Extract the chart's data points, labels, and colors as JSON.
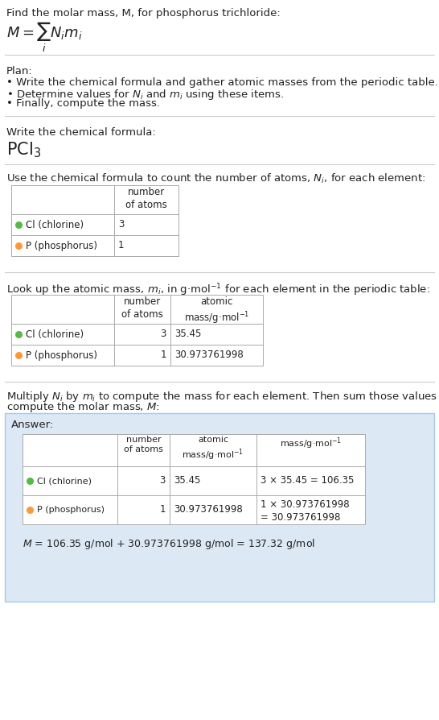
{
  "bg_color": "#ffffff",
  "answer_bg_color": "#dce9f5",
  "answer_border_color": "#a8c8e8",
  "table_border_color": "#aaaaaa",
  "cl_color": "#55bb44",
  "p_color": "#ff9933",
  "text_color": "#222222",
  "separator_color": "#cccccc",
  "title": "Find the molar mass, M, for phosphorus trichloride:",
  "plan_label": "Plan:",
  "plan_bullets": [
    "• Write the chemical formula and gather atomic masses from the periodic table.",
    "• Determine values for $N_i$ and $m_i$ using these items.",
    "• Finally, compute the mass."
  ],
  "section2_label": "Write the chemical formula:",
  "section3_label": "Use the chemical formula to count the number of atoms, $N_i$, for each element:",
  "section4_label": "Look up the atomic mass, $m_i$, in g·mol$^{-1}$ for each element in the periodic table:",
  "section5_label1": "Multiply $N_i$ by $m_i$ to compute the mass for each element. Then sum those values to",
  "section5_label2": "compute the molar mass, $M$:",
  "answer_label": "Answer:",
  "elements": [
    "Cl (chlorine)",
    "P (phosphorus)"
  ],
  "n_atoms": [
    "3",
    "1"
  ],
  "atomic_masses": [
    "35.45",
    "30.973761998"
  ],
  "mass_calcs": [
    "3 × 35.45 = 106.35",
    "1 × 30.973761998\n= 30.973761998"
  ],
  "final_eq": "$M$ = 106.35 g/mol + 30.973761998 g/mol = 137.32 g/mol"
}
